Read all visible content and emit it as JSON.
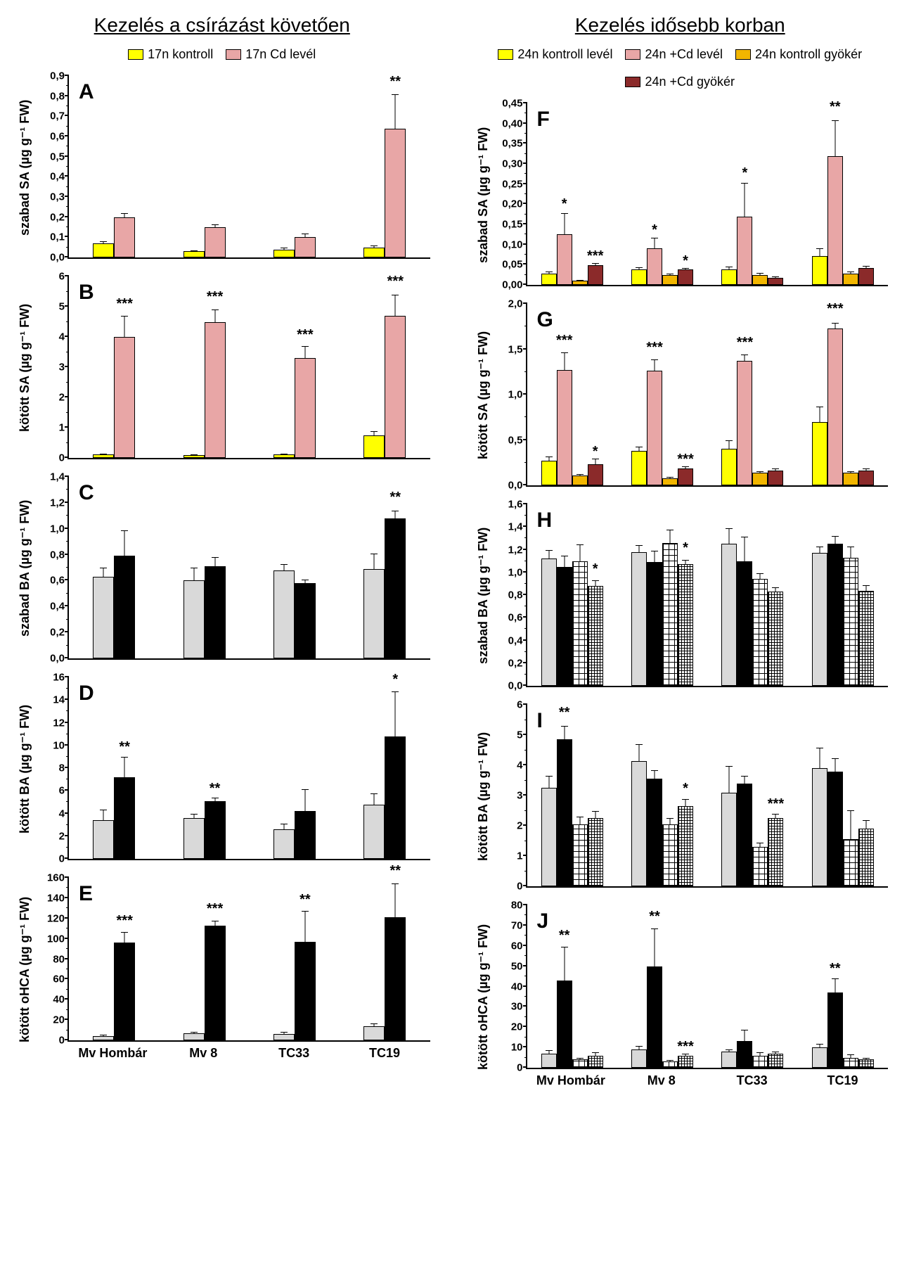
{
  "columns": [
    {
      "title": "Kezelés a csírázást követően"
    },
    {
      "title": "Kezelés idősebb korban"
    }
  ],
  "legends": {
    "left": [
      {
        "label": "17n kontroll",
        "fill": "#ffff00"
      },
      {
        "label": "17n Cd levél",
        "fill": "#e8a6a6"
      }
    ],
    "right": [
      {
        "label": "24n kontroll levél",
        "fill": "#ffff00"
      },
      {
        "label": "24n +Cd levél",
        "fill": "#e8a6a6"
      },
      {
        "label": "24n kontroll gyökér",
        "fill": "#f2b600"
      },
      {
        "label": "24n +Cd gyökér",
        "fill": "#8b2a2a"
      }
    ]
  },
  "categories": [
    "Mv Hombár",
    "Mv 8",
    "TC33",
    "TC19"
  ],
  "colors": {
    "yellow": "#ffff00",
    "pink": "#e8a6a6",
    "orange": "#f2b600",
    "darkred": "#8b2a2a",
    "lightgray": "#d9d9d9",
    "black": "#000000"
  },
  "panels": [
    {
      "id": "A",
      "col": 0,
      "ylabel": "szabad SA (µg g⁻¹ FW)",
      "ymax": 0.9,
      "ytick": 0.1,
      "decimals": 1,
      "comma": true,
      "series_fill": [
        "yellow",
        "pink"
      ],
      "groups": [
        [
          {
            "v": 0.07,
            "e": 0.01
          },
          {
            "v": 0.2,
            "e": 0.02
          }
        ],
        [
          {
            "v": 0.03,
            "e": 0.005
          },
          {
            "v": 0.15,
            "e": 0.015
          }
        ],
        [
          {
            "v": 0.04,
            "e": 0.01
          },
          {
            "v": 0.1,
            "e": 0.02
          }
        ],
        [
          {
            "v": 0.05,
            "e": 0.01
          },
          {
            "v": 0.64,
            "e": 0.17,
            "sig": "**"
          }
        ]
      ]
    },
    {
      "id": "B",
      "col": 0,
      "ylabel": "kötött SA (µg g⁻¹ FW)",
      "ymax": 6,
      "ytick": 1,
      "decimals": 0,
      "series_fill": [
        "yellow",
        "pink"
      ],
      "groups": [
        [
          {
            "v": 0.12,
            "e": 0.05
          },
          {
            "v": 4.0,
            "e": 0.7,
            "sig": "***"
          }
        ],
        [
          {
            "v": 0.1,
            "e": 0.03
          },
          {
            "v": 4.5,
            "e": 0.4,
            "sig": "***"
          }
        ],
        [
          {
            "v": 0.12,
            "e": 0.04
          },
          {
            "v": 3.3,
            "e": 0.4,
            "sig": "***"
          }
        ],
        [
          {
            "v": 0.75,
            "e": 0.15
          },
          {
            "v": 4.7,
            "e": 0.7,
            "sig": "***"
          }
        ]
      ]
    },
    {
      "id": "C",
      "col": 0,
      "ylabel": "szabad BA (µg g⁻¹ FW)",
      "ymax": 1.4,
      "ytick": 0.2,
      "decimals": 1,
      "comma": true,
      "series_fill": [
        "lightgray",
        "black"
      ],
      "groups": [
        [
          {
            "v": 0.63,
            "e": 0.07
          },
          {
            "v": 0.79,
            "e": 0.2
          }
        ],
        [
          {
            "v": 0.6,
            "e": 0.1
          },
          {
            "v": 0.71,
            "e": 0.07
          }
        ],
        [
          {
            "v": 0.68,
            "e": 0.05
          },
          {
            "v": 0.58,
            "e": 0.03
          }
        ],
        [
          {
            "v": 0.69,
            "e": 0.12
          },
          {
            "v": 1.08,
            "e": 0.06,
            "sig": "**"
          }
        ]
      ]
    },
    {
      "id": "D",
      "col": 0,
      "ylabel": "kötött BA (µg g⁻¹ FW)",
      "ymax": 16,
      "ytick": 2,
      "decimals": 0,
      "series_fill": [
        "lightgray",
        "black"
      ],
      "groups": [
        [
          {
            "v": 3.4,
            "e": 1.0
          },
          {
            "v": 7.2,
            "e": 1.8,
            "sig": "**"
          }
        ],
        [
          {
            "v": 3.6,
            "e": 0.4
          },
          {
            "v": 5.1,
            "e": 0.3,
            "sig": "**"
          }
        ],
        [
          {
            "v": 2.6,
            "e": 0.5
          },
          {
            "v": 4.2,
            "e": 2.0
          }
        ],
        [
          {
            "v": 4.8,
            "e": 1.0
          },
          {
            "v": 10.8,
            "e": 4.0,
            "sig": "*"
          }
        ]
      ]
    },
    {
      "id": "E",
      "col": 0,
      "ylabel": "kötött oHCA (µg g⁻¹ FW)",
      "ymax": 160,
      "ytick": 20,
      "decimals": 0,
      "show_xaxis": true,
      "series_fill": [
        "lightgray",
        "black"
      ],
      "groups": [
        [
          {
            "v": 4,
            "e": 2
          },
          {
            "v": 96,
            "e": 11,
            "sig": "***"
          }
        ],
        [
          {
            "v": 7,
            "e": 2
          },
          {
            "v": 113,
            "e": 5,
            "sig": "***"
          }
        ],
        [
          {
            "v": 6,
            "e": 3
          },
          {
            "v": 97,
            "e": 31,
            "sig": "**"
          }
        ],
        [
          {
            "v": 14,
            "e": 3
          },
          {
            "v": 121,
            "e": 34,
            "sig": "**"
          }
        ]
      ]
    },
    {
      "id": "F",
      "col": 1,
      "ylabel": "szabad SA (µg g⁻¹ FW)",
      "ymax": 0.45,
      "ytick": 0.05,
      "decimals": 2,
      "comma": true,
      "series_fill": [
        "yellow",
        "pink",
        "orange",
        "darkred"
      ],
      "bar4": true,
      "groups": [
        [
          {
            "v": 0.028,
            "e": 0.005
          },
          {
            "v": 0.125,
            "e": 0.055,
            "sig": "*"
          },
          {
            "v": 0.01,
            "e": 0.003
          },
          {
            "v": 0.048,
            "e": 0.006,
            "sig": "***"
          }
        ],
        [
          {
            "v": 0.038,
            "e": 0.006
          },
          {
            "v": 0.09,
            "e": 0.028,
            "sig": "*"
          },
          {
            "v": 0.024,
            "e": 0.004
          },
          {
            "v": 0.038,
            "e": 0.005,
            "sig": "*"
          }
        ],
        [
          {
            "v": 0.038,
            "e": 0.008
          },
          {
            "v": 0.17,
            "e": 0.085,
            "sig": "*"
          },
          {
            "v": 0.025,
            "e": 0.005
          },
          {
            "v": 0.017,
            "e": 0.005
          }
        ],
        [
          {
            "v": 0.072,
            "e": 0.02
          },
          {
            "v": 0.32,
            "e": 0.09,
            "sig": "**"
          },
          {
            "v": 0.028,
            "e": 0.005
          },
          {
            "v": 0.042,
            "e": 0.006
          }
        ]
      ]
    },
    {
      "id": "G",
      "col": 1,
      "ylabel": "kötött SA (µg g⁻¹ FW)",
      "ymax": 2,
      "ytick": 0.5,
      "decimals": 1,
      "comma": true,
      "series_fill": [
        "yellow",
        "pink",
        "orange",
        "darkred"
      ],
      "bar4": true,
      "groups": [
        [
          {
            "v": 0.27,
            "e": 0.05
          },
          {
            "v": 1.27,
            "e": 0.2,
            "sig": "***"
          },
          {
            "v": 0.11,
            "e": 0.02
          },
          {
            "v": 0.23,
            "e": 0.07,
            "sig": "*"
          }
        ],
        [
          {
            "v": 0.38,
            "e": 0.05
          },
          {
            "v": 1.26,
            "e": 0.13,
            "sig": "***"
          },
          {
            "v": 0.08,
            "e": 0.02
          },
          {
            "v": 0.19,
            "e": 0.02,
            "sig": "***"
          }
        ],
        [
          {
            "v": 0.4,
            "e": 0.1
          },
          {
            "v": 1.37,
            "e": 0.07,
            "sig": "***"
          },
          {
            "v": 0.14,
            "e": 0.02
          },
          {
            "v": 0.16,
            "e": 0.03
          }
        ],
        [
          {
            "v": 0.7,
            "e": 0.17
          },
          {
            "v": 1.73,
            "e": 0.06,
            "sig": "***"
          },
          {
            "v": 0.14,
            "e": 0.02
          },
          {
            "v": 0.16,
            "e": 0.03
          }
        ]
      ]
    },
    {
      "id": "H",
      "col": 1,
      "ylabel": "szabad BA (µg g⁻¹ FW)",
      "ymax": 1.6,
      "ytick": 0.2,
      "decimals": 1,
      "comma": true,
      "series_fill": [
        "lightgray",
        "black",
        "hatch-lg",
        "hatch-sm"
      ],
      "bar4": true,
      "groups": [
        [
          {
            "v": 1.12,
            "e": 0.08
          },
          {
            "v": 1.05,
            "e": 0.1
          },
          {
            "v": 1.1,
            "e": 0.15
          },
          {
            "v": 0.88,
            "e": 0.05,
            "sig": "*"
          }
        ],
        [
          {
            "v": 1.18,
            "e": 0.06
          },
          {
            "v": 1.09,
            "e": 0.1
          },
          {
            "v": 1.26,
            "e": 0.12
          },
          {
            "v": 1.07,
            "e": 0.04,
            "sig": "*"
          }
        ],
        [
          {
            "v": 1.25,
            "e": 0.14
          },
          {
            "v": 1.1,
            "e": 0.22
          },
          {
            "v": 0.94,
            "e": 0.05
          },
          {
            "v": 0.83,
            "e": 0.04
          }
        ],
        [
          {
            "v": 1.17,
            "e": 0.06
          },
          {
            "v": 1.25,
            "e": 0.07
          },
          {
            "v": 1.13,
            "e": 0.1
          },
          {
            "v": 0.84,
            "e": 0.05
          }
        ]
      ]
    },
    {
      "id": "I",
      "col": 1,
      "ylabel": "kötött BA (µg g⁻¹ FW)",
      "ymax": 6,
      "ytick": 1,
      "decimals": 0,
      "series_fill": [
        "lightgray",
        "black",
        "hatch-lg",
        "hatch-sm"
      ],
      "bar4": true,
      "groups": [
        [
          {
            "v": 3.25,
            "e": 0.4
          },
          {
            "v": 4.85,
            "e": 0.45,
            "sig": "**"
          },
          {
            "v": 2.05,
            "e": 0.25
          },
          {
            "v": 2.25,
            "e": 0.25
          }
        ],
        [
          {
            "v": 4.15,
            "e": 0.55
          },
          {
            "v": 3.55,
            "e": 0.3
          },
          {
            "v": 2.05,
            "e": 0.2
          },
          {
            "v": 2.65,
            "e": 0.25,
            "sig": "*"
          }
        ],
        [
          {
            "v": 3.1,
            "e": 0.9
          },
          {
            "v": 3.4,
            "e": 0.25
          },
          {
            "v": 1.3,
            "e": 0.15
          },
          {
            "v": 2.25,
            "e": 0.15,
            "sig": "***"
          }
        ],
        [
          {
            "v": 3.9,
            "e": 0.7
          },
          {
            "v": 3.8,
            "e": 0.45
          },
          {
            "v": 1.55,
            "e": 1.0
          },
          {
            "v": 1.9,
            "e": 0.3
          }
        ]
      ]
    },
    {
      "id": "J",
      "col": 1,
      "ylabel": "kötött oHCA (µg g⁻¹ FW)",
      "ymax": 80,
      "ytick": 10,
      "decimals": 0,
      "show_xaxis": true,
      "series_fill": [
        "lightgray",
        "black",
        "hatch-lg",
        "hatch-sm"
      ],
      "bar4": true,
      "groups": [
        [
          {
            "v": 7,
            "e": 2
          },
          {
            "v": 43,
            "e": 17,
            "sig": "**"
          },
          {
            "v": 4,
            "e": 1
          },
          {
            "v": 6,
            "e": 2
          }
        ],
        [
          {
            "v": 9,
            "e": 2
          },
          {
            "v": 50,
            "e": 19,
            "sig": "**"
          },
          {
            "v": 3,
            "e": 1
          },
          {
            "v": 6,
            "e": 1,
            "sig": "***"
          }
        ],
        [
          {
            "v": 8,
            "e": 1
          },
          {
            "v": 13,
            "e": 6
          },
          {
            "v": 6,
            "e": 2
          },
          {
            "v": 7,
            "e": 1
          }
        ],
        [
          {
            "v": 10,
            "e": 2
          },
          {
            "v": 37,
            "e": 7,
            "sig": "**"
          },
          {
            "v": 5,
            "e": 2
          },
          {
            "v": 4,
            "e": 1
          }
        ]
      ]
    }
  ]
}
